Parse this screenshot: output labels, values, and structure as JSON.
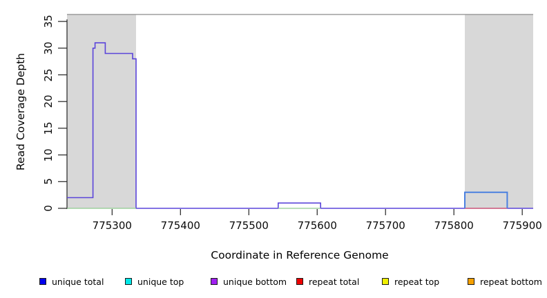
{
  "figure": {
    "ylabel": "Read Coverage Depth",
    "xlabel": "Coordinate in Reference Genome",
    "y_ticks": [
      0,
      5,
      10,
      15,
      20,
      25,
      30,
      35
    ],
    "x_ticks": [
      775300,
      775400,
      775500,
      775600,
      775700,
      775800,
      775900
    ],
    "x_range": [
      775234,
      775916
    ],
    "y_range": [
      0,
      36.3
    ],
    "shaded_region_color": "#d8d8d8",
    "top_border_color": "#8a8a8a",
    "axis_color": "#222222"
  },
  "chart_data": {
    "type": "line",
    "subtype": "step-coverage",
    "title": "",
    "xlabel": "Coordinate in Reference Genome",
    "ylabel": "Read Coverage Depth",
    "xlim": [
      775234,
      775916
    ],
    "ylim": [
      0,
      36.3
    ],
    "grid": false,
    "shaded_regions": [
      [
        775234,
        775335
      ],
      [
        775816,
        775916
      ]
    ],
    "series": [
      {
        "name": "unique bottom + unique total (overlaid step line)",
        "color": "#5a44da",
        "width": 1.6,
        "steps": [
          [
            775234,
            775272,
            2
          ],
          [
            775272,
            775275,
            30
          ],
          [
            775275,
            775290,
            31
          ],
          [
            775290,
            775330,
            29
          ],
          [
            775330,
            775335,
            28
          ],
          [
            775335,
            775543,
            0
          ],
          [
            775543,
            775605,
            1
          ],
          [
            775605,
            775916,
            0
          ]
        ]
      },
      {
        "name": "unique top at zero (visible under covered regions)",
        "color": "#8fcb8f",
        "width": 1.3,
        "steps": [
          [
            775234,
            775335,
            0
          ],
          [
            775543,
            775605,
            0
          ]
        ]
      },
      {
        "name": "repeat total at zero (visible under right block)",
        "color": "#ee6666",
        "width": 1.3,
        "steps": [
          [
            775816,
            775878,
            0
          ]
        ]
      },
      {
        "name": "unique total block",
        "color": "#4a80e0",
        "width": 2,
        "steps": [
          [
            775816,
            775816,
            0
          ],
          [
            775816,
            775878,
            3
          ],
          [
            775878,
            775878,
            0
          ]
        ]
      }
    ]
  },
  "legend": {
    "items": [
      {
        "label": "unique total",
        "color": "#0000ee"
      },
      {
        "label": "unique top",
        "color": "#00e8e8"
      },
      {
        "label": "unique bottom",
        "color": "#a020f0"
      },
      {
        "label": "repeat total",
        "color": "#ee0000"
      },
      {
        "label": "repeat top",
        "color": "#f0f000"
      },
      {
        "label": "repeat bottom",
        "color": "#f5a000"
      }
    ]
  }
}
